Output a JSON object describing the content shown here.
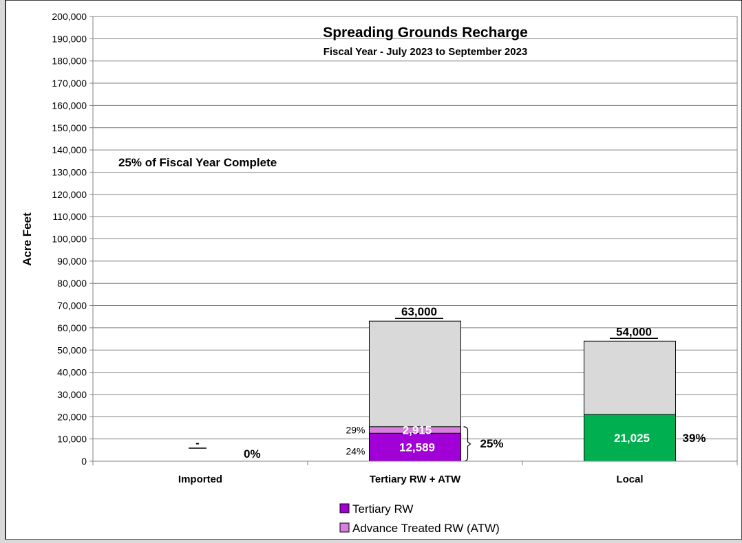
{
  "chart_data": {
    "type": "bar",
    "stacked": true,
    "title": "Spreading Grounds Recharge",
    "subtitle": "Fiscal Year - July 2023 to September 2023",
    "ylabel": "Acre Feet",
    "ylim": [
      0,
      200000
    ],
    "ytick_step": 10000,
    "ytick_labels": [
      "0",
      "10,000",
      "20,000",
      "30,000",
      "40,000",
      "50,000",
      "60,000",
      "70,000",
      "80,000",
      "90,000",
      "100,000",
      "110,000",
      "120,000",
      "130,000",
      "140,000",
      "150,000",
      "160,000",
      "170,000",
      "180,000",
      "190,000",
      "200,000"
    ],
    "grid": true,
    "legend_position": "bottom",
    "categories": [
      "Imported",
      "Tertiary RW + ATW",
      "Local"
    ],
    "targets": [
      0,
      63000,
      54000
    ],
    "target_labels": [
      "-",
      "63,000",
      "54,000"
    ],
    "series": [
      {
        "name": "Tertiary RW",
        "color": "#a100d6",
        "values": [
          0,
          12589,
          21025
        ]
      },
      {
        "name": "Advance Treated RW (ATW)",
        "color": "#d97fe0",
        "values": [
          0,
          2915,
          0
        ]
      }
    ],
    "local_bar_color": "#00b050",
    "remaining_color": "#d9d9d9",
    "value_labels": [
      {
        "category": 0,
        "text": "-"
      },
      {
        "category": 1,
        "series": 0,
        "text": "12,589"
      },
      {
        "category": 1,
        "series": 1,
        "text": "2,915"
      },
      {
        "category": 2,
        "series": 0,
        "text": "21,025"
      }
    ],
    "segment_percents": [
      {
        "category": 1,
        "series": 0,
        "text": "24%"
      },
      {
        "category": 1,
        "series": 1,
        "text": "29%"
      }
    ],
    "total_percents": [
      "0%",
      "25%",
      "39%"
    ],
    "annotation": "25% of Fiscal Year Complete"
  }
}
